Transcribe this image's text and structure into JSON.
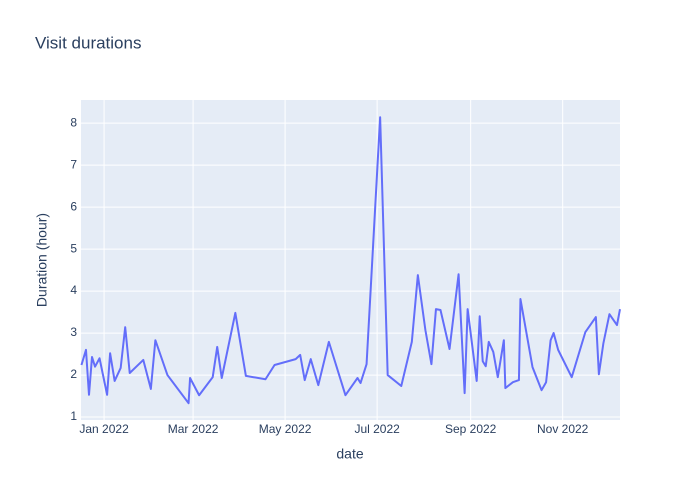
{
  "chart_data": {
    "type": "line",
    "title": "Visit durations",
    "x_label": "date",
    "y_label": "Duration (hour)",
    "x": [
      -15,
      -12,
      -10,
      -8,
      -6,
      -3,
      2,
      4,
      7,
      11,
      14,
      17,
      26,
      31,
      34,
      42,
      56,
      57,
      63,
      72,
      75,
      78,
      87,
      94,
      107,
      113,
      127,
      130,
      133,
      137,
      142,
      149,
      160,
      168,
      170,
      174,
      183,
      188,
      197,
      204,
      208,
      213,
      217,
      220,
      223,
      229,
      235,
      239,
      241,
      247,
      249,
      251,
      253,
      255,
      258,
      261,
      265,
      266,
      271,
      275,
      276,
      284,
      290,
      293,
      296,
      298,
      301,
      310,
      319,
      326,
      328,
      331,
      335,
      340,
      342
    ],
    "series": [
      {
        "color": "#636efa",
        "values": [
          2.24,
          2.6,
          1.53,
          2.43,
          2.2,
          2.4,
          1.53,
          2.52,
          1.86,
          2.17,
          3.14,
          2.05,
          2.36,
          1.67,
          2.83,
          2.0,
          1.33,
          1.93,
          1.52,
          1.95,
          2.67,
          1.93,
          3.48,
          1.98,
          1.9,
          2.24,
          2.38,
          2.48,
          1.88,
          2.38,
          1.76,
          2.79,
          1.52,
          1.93,
          1.81,
          2.26,
          8.14,
          2.0,
          1.74,
          2.79,
          4.38,
          3.07,
          2.26,
          3.57,
          3.55,
          2.62,
          4.4,
          1.57,
          3.57,
          1.86,
          3.4,
          2.33,
          2.21,
          2.79,
          2.55,
          1.95,
          2.83,
          1.69,
          1.83,
          1.88,
          3.81,
          2.19,
          1.64,
          1.83,
          2.83,
          3.0,
          2.6,
          1.95,
          3.02,
          3.38,
          2.02,
          2.76,
          3.45,
          3.19,
          3.57
        ]
      }
    ],
    "xlim": [
      -15.3,
      342
    ],
    "ylim": [
      0.93,
      8.55
    ],
    "xticks": [
      {
        "value": 0,
        "label": "Jan 2022"
      },
      {
        "value": 59,
        "label": "Mar 2022"
      },
      {
        "value": 120,
        "label": "May 2022"
      },
      {
        "value": 181,
        "label": "Jul 2022"
      },
      {
        "value": 243,
        "label": "Sep 2022"
      },
      {
        "value": 304,
        "label": "Nov 2022"
      }
    ],
    "yticks": [
      1,
      2,
      3,
      4,
      5,
      6,
      7,
      8
    ],
    "grid": true,
    "background": "#e5ecf6"
  }
}
